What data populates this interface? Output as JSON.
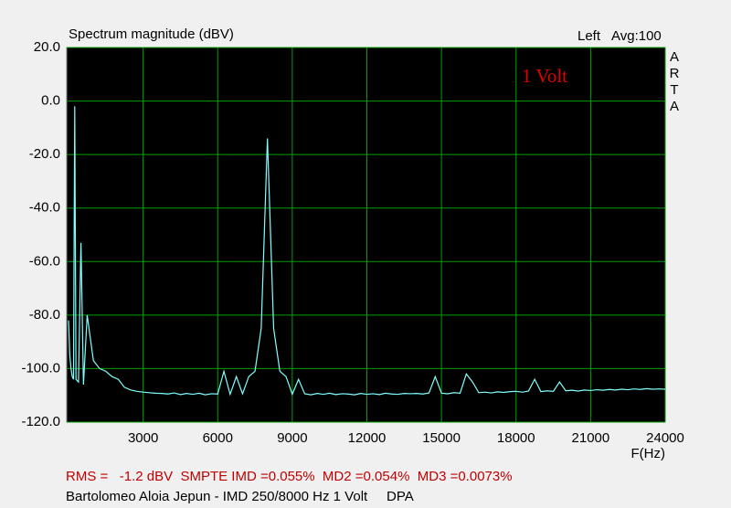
{
  "chart_data": {
    "type": "line",
    "title": "Spectrum magnitude (dBV)",
    "channel": "Left",
    "averaging": "Avg:100",
    "brand": "ARTA",
    "annotation": "1 Volt",
    "x_label": "F(Hz)",
    "measurement": "RMS =   -1.2 dBV  SMPTE IMD =0.055%  MD2 =0.054%  MD3 =0.0073%",
    "caption": "Bartolomeo Aloia Jepun - IMD 250/8000 Hz 1 Volt     DPA",
    "color": "#80ffff",
    "grid": true,
    "xlim": [
      0,
      24000
    ],
    "ylim": [
      -120,
      20
    ],
    "xticks": [
      3000,
      6000,
      9000,
      12000,
      15000,
      18000,
      21000,
      24000
    ],
    "yticks": [
      {
        "value": 20,
        "label": "20.0"
      },
      {
        "value": 0,
        "label": "0.0"
      },
      {
        "value": -20,
        "label": "-20.0"
      },
      {
        "value": -40,
        "label": "-40.0"
      },
      {
        "value": -60,
        "label": "-60.0"
      },
      {
        "value": -80,
        "label": "-80.0"
      },
      {
        "value": -100,
        "label": "-100.0"
      },
      {
        "value": -120,
        "label": "-120.0"
      }
    ],
    "x": [
      0,
      50,
      100,
      150,
      200,
      250,
      300,
      400,
      500,
      600,
      750,
      1000,
      1250,
      1500,
      1750,
      2000,
      2250,
      2500,
      2750,
      3000,
      3250,
      3500,
      3750,
      4000,
      4250,
      4500,
      4750,
      5000,
      5250,
      5500,
      5750,
      6000,
      6250,
      6500,
      6750,
      7000,
      7250,
      7500,
      7750,
      8000,
      8250,
      8500,
      8750,
      9000,
      9250,
      9500,
      9750,
      10000,
      10250,
      10500,
      10750,
      11000,
      11250,
      11500,
      11750,
      12000,
      12250,
      12500,
      12750,
      13000,
      13250,
      13500,
      13750,
      14000,
      14250,
      14500,
      14750,
      15000,
      15250,
      15500,
      15750,
      16000,
      16250,
      16500,
      16750,
      17000,
      17250,
      17500,
      17750,
      18000,
      18250,
      18500,
      18750,
      19000,
      19250,
      19500,
      19750,
      20000,
      20250,
      20500,
      20750,
      21000,
      21250,
      21500,
      21750,
      22000,
      22250,
      22500,
      22750,
      23000,
      23250,
      23500,
      23750,
      24000
    ],
    "values": [
      -82,
      -95,
      -100,
      -103,
      -104,
      -2,
      -104,
      -105,
      -53,
      -106,
      -80,
      -97,
      -100,
      -101,
      -103,
      -104,
      -107,
      -108,
      -108.5,
      -108.8,
      -109,
      -109.2,
      -109.3,
      -109.5,
      -109.1,
      -109.7,
      -109.3,
      -109.6,
      -109.2,
      -109.8,
      -109.4,
      -109.5,
      -101,
      -109.6,
      -103,
      -109.4,
      -103,
      -101,
      -85,
      -14,
      -85,
      -101,
      -103,
      -109.6,
      -104,
      -109.4,
      -109.8,
      -109.3,
      -109.6,
      -109.2,
      -109.7,
      -109.4,
      -109.5,
      -109.8,
      -109.3,
      -109.6,
      -109.4,
      -109.7,
      -109.2,
      -109.5,
      -109.6,
      -109.3,
      -109.4,
      -109.3,
      -109.5,
      -109.1,
      -103,
      -109.2,
      -109.4,
      -109,
      -109.2,
      -102,
      -105,
      -109,
      -108.8,
      -109.1,
      -108.7,
      -108.9,
      -108.6,
      -108.5,
      -108.8,
      -108.4,
      -104,
      -108.6,
      -108.3,
      -108.5,
      -105,
      -108.3,
      -108.1,
      -108.4,
      -108,
      -108.2,
      -107.9,
      -108.1,
      -107.8,
      -108,
      -107.7,
      -107.9,
      -107.6,
      -107.8,
      -107.5,
      -107.7,
      -107.6,
      -107.7
    ]
  }
}
